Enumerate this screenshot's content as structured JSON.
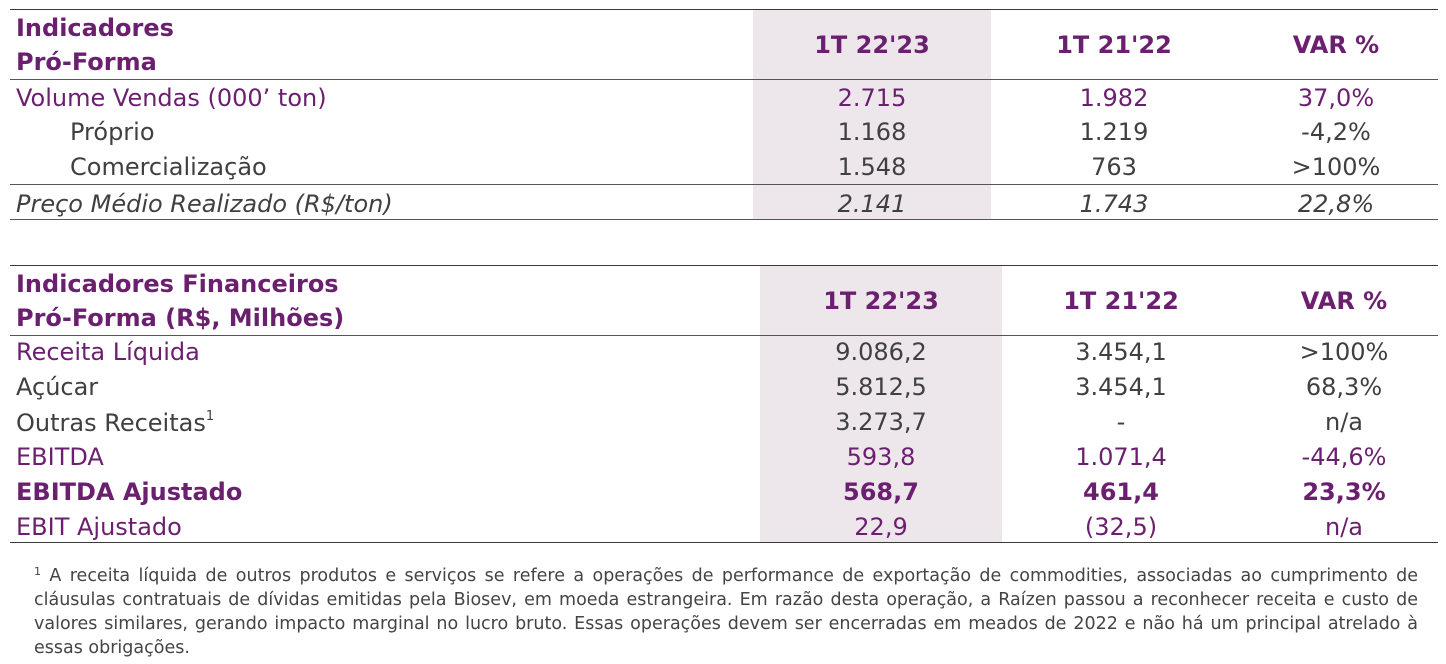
{
  "table1": {
    "title_line1": "Indicadores",
    "title_line2": "Pró-Forma",
    "columns": [
      "1T 22'23",
      "1T 21'22",
      "VAR %"
    ],
    "rows": [
      {
        "label": "Volume Vendas (000’ ton)",
        "values": [
          "2.715",
          "1.982",
          "37,0%"
        ]
      },
      {
        "label": "Próprio",
        "values": [
          "1.168",
          "1.219",
          "-4,2%"
        ]
      },
      {
        "label": "Comercialização",
        "values": [
          "1.548",
          "763",
          ">100%"
        ]
      },
      {
        "label": "Preço Médio Realizado (R$/ton)",
        "values": [
          "2.141",
          "1.743",
          "22,8%"
        ]
      }
    ]
  },
  "table2": {
    "title_line1": "Indicadores Financeiros",
    "title_line2": "Pró-Forma (R$, Milhões)",
    "columns": [
      "1T 22'23",
      "1T 21'22",
      "VAR %"
    ],
    "rows": [
      {
        "label": "Receita Líquida",
        "values": [
          "9.086,2",
          "3.454,1",
          ">100%"
        ]
      },
      {
        "label": "Açúcar",
        "values": [
          "5.812,5",
          "3.454,1",
          "68,3%"
        ]
      },
      {
        "label": "Outras Receitas",
        "sup": "1",
        "values": [
          "3.273,7",
          "-",
          "n/a"
        ]
      },
      {
        "label": "EBITDA",
        "values": [
          "593,8",
          "1.071,4",
          "-44,6%"
        ]
      },
      {
        "label": "EBITDA Ajustado",
        "values": [
          "568,7",
          "461,4",
          "23,3%"
        ]
      },
      {
        "label": "EBIT Ajustado",
        "values": [
          "22,9",
          "(32,5)",
          "n/a"
        ]
      }
    ]
  },
  "footnote": {
    "marker": "1",
    "text": " A receita líquida de outros produtos e serviços se refere a operações de performance de exportação de commodities, associadas ao cumprimento de cláusulas contratuais de dívidas emitidas pela Biosev, em moeda estrangeira. Em razão desta operação, a Raízen passou a reconhecer receita e custo de valores similares, gerando impacto marginal no lucro bruto. Essas operações devem ser encerradas em meados de 2022 e não há um principal atrelado à essas obrigações."
  }
}
